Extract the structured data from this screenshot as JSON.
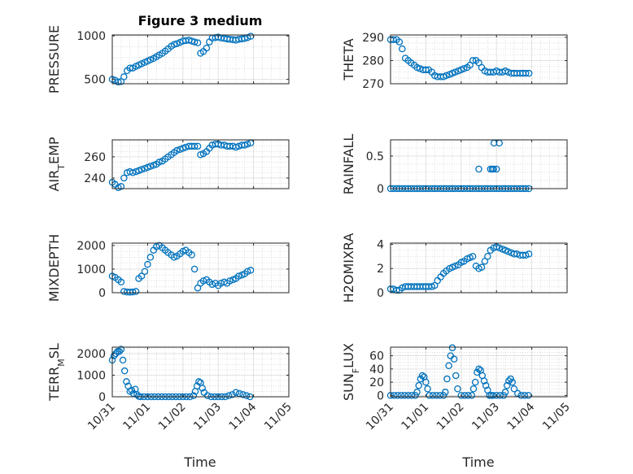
{
  "figure": {
    "title": "Figure 3 medium",
    "x_axis_label": "Time",
    "x_ticks": [
      "10/31",
      "11/01",
      "11/02",
      "11/03",
      "11/04",
      "11/05"
    ],
    "marker_color": "#0072BD",
    "marker": "open-circle"
  },
  "chart_data": [
    {
      "type": "scatter",
      "ylabel": "PRESSURE",
      "xlim": [
        0,
        5
      ],
      "ylim": [
        450,
        1010
      ],
      "yticks": [
        500,
        1000
      ],
      "grid": true,
      "x": [
        0.0,
        0.08,
        0.17,
        0.25,
        0.33,
        0.42,
        0.5,
        0.58,
        0.67,
        0.75,
        0.83,
        0.92,
        1.0,
        1.08,
        1.17,
        1.25,
        1.33,
        1.42,
        1.5,
        1.58,
        1.67,
        1.75,
        1.83,
        1.92,
        2.0,
        2.08,
        2.17,
        2.25,
        2.33,
        2.42,
        2.5,
        2.58,
        2.67,
        2.75,
        2.83,
        2.92,
        3.0,
        3.08,
        3.17,
        3.25,
        3.33,
        3.42,
        3.5,
        3.58,
        3.67,
        3.75,
        3.83,
        3.92
      ],
      "y": [
        500,
        490,
        470,
        475,
        530,
        600,
        630,
        630,
        650,
        665,
        680,
        695,
        710,
        725,
        740,
        760,
        780,
        800,
        825,
        850,
        880,
        900,
        910,
        925,
        940,
        945,
        950,
        940,
        930,
        920,
        800,
        820,
        860,
        930,
        975,
        980,
        985,
        975,
        970,
        965,
        960,
        955,
        950,
        960,
        965,
        970,
        980,
        995
      ]
    },
    {
      "type": "scatter",
      "ylabel": "THETA",
      "xlim": [
        0,
        5
      ],
      "ylim": [
        270,
        291
      ],
      "yticks": [
        270,
        280,
        290
      ],
      "grid": true,
      "x": [
        0.0,
        0.08,
        0.17,
        0.25,
        0.33,
        0.42,
        0.5,
        0.58,
        0.67,
        0.75,
        0.83,
        0.92,
        1.0,
        1.08,
        1.17,
        1.25,
        1.33,
        1.42,
        1.5,
        1.58,
        1.67,
        1.75,
        1.83,
        1.92,
        2.0,
        2.08,
        2.17,
        2.25,
        2.33,
        2.42,
        2.5,
        2.58,
        2.67,
        2.75,
        2.83,
        2.92,
        3.0,
        3.08,
        3.17,
        3.25,
        3.33,
        3.42,
        3.5,
        3.58,
        3.67,
        3.75,
        3.83,
        3.92
      ],
      "y": [
        289,
        289,
        289,
        288,
        285,
        281,
        280,
        279,
        278,
        277,
        276.5,
        276,
        276,
        276,
        275,
        273.5,
        273,
        273,
        273,
        273.5,
        274,
        274.5,
        275,
        275.5,
        276,
        276.5,
        277,
        278,
        280,
        280,
        279,
        277,
        275.5,
        275,
        275,
        275,
        275.5,
        275,
        275,
        275.5,
        275,
        274.5,
        274.5,
        274.5,
        274.5,
        274.5,
        274.5,
        274.5
      ]
    },
    {
      "type": "scatter",
      "ylabel": "AIR_TEMP",
      "xlim": [
        0,
        5
      ],
      "ylim": [
        230,
        276
      ],
      "yticks": [
        240,
        260
      ],
      "grid": true,
      "x": [
        0.0,
        0.08,
        0.17,
        0.25,
        0.33,
        0.42,
        0.5,
        0.58,
        0.67,
        0.75,
        0.83,
        0.92,
        1.0,
        1.08,
        1.17,
        1.25,
        1.33,
        1.42,
        1.5,
        1.58,
        1.67,
        1.75,
        1.83,
        1.92,
        2.0,
        2.08,
        2.17,
        2.25,
        2.33,
        2.42,
        2.5,
        2.58,
        2.67,
        2.75,
        2.83,
        2.92,
        3.0,
        3.08,
        3.17,
        3.25,
        3.33,
        3.42,
        3.5,
        3.58,
        3.67,
        3.75,
        3.83,
        3.92
      ],
      "y": [
        236,
        234,
        231,
        232,
        240,
        245,
        246,
        245,
        246,
        247,
        248,
        249,
        250,
        251,
        252,
        253,
        255,
        256,
        258,
        260,
        262,
        264,
        266,
        267,
        268,
        269,
        270,
        270,
        270,
        270,
        262,
        263,
        265,
        268,
        271,
        272,
        272,
        271,
        271,
        270,
        270,
        270,
        269,
        270,
        271,
        271,
        272,
        273
      ]
    },
    {
      "type": "scatter",
      "ylabel": "RAINFALL",
      "xlim": [
        0,
        5
      ],
      "ylim": [
        0,
        0.75
      ],
      "yticks": [
        0,
        0.5
      ],
      "grid": true,
      "x": [
        0.0,
        0.08,
        0.17,
        0.25,
        0.33,
        0.42,
        0.5,
        0.58,
        0.67,
        0.75,
        0.83,
        0.92,
        1.0,
        1.08,
        1.17,
        1.25,
        1.33,
        1.42,
        1.5,
        1.58,
        1.67,
        1.75,
        1.83,
        1.92,
        2.0,
        2.08,
        2.17,
        2.25,
        2.33,
        2.42,
        2.5,
        2.58,
        2.67,
        2.75,
        2.83,
        2.92,
        3.0,
        3.08,
        3.17,
        3.25,
        3.33,
        3.42,
        3.5,
        3.58,
        3.67,
        3.75,
        3.83,
        3.92,
        2.5,
        2.83,
        2.88,
        2.92,
        3.0,
        2.93,
        3.08
      ],
      "y": [
        0,
        0,
        0,
        0,
        0,
        0,
        0,
        0,
        0,
        0,
        0,
        0,
        0,
        0,
        0,
        0,
        0,
        0,
        0,
        0,
        0,
        0,
        0,
        0,
        0,
        0,
        0,
        0,
        0,
        0,
        0,
        0,
        0,
        0,
        0,
        0,
        0,
        0,
        0,
        0,
        0,
        0,
        0,
        0,
        0,
        0,
        0,
        0,
        0.3,
        0.3,
        0.3,
        0.3,
        0.3,
        0.7,
        0.7
      ]
    },
    {
      "type": "scatter",
      "ylabel": "MIXDEPTH",
      "xlim": [
        0,
        5
      ],
      "ylim": [
        0,
        2100
      ],
      "yticks": [
        0,
        1000,
        2000
      ],
      "grid": true,
      "x": [
        0.0,
        0.08,
        0.17,
        0.25,
        0.33,
        0.42,
        0.5,
        0.58,
        0.67,
        0.75,
        0.83,
        0.92,
        1.0,
        1.08,
        1.17,
        1.25,
        1.33,
        1.42,
        1.5,
        1.58,
        1.67,
        1.75,
        1.83,
        1.92,
        2.0,
        2.08,
        2.17,
        2.25,
        2.33,
        2.42,
        2.5,
        2.58,
        2.67,
        2.75,
        2.83,
        2.92,
        3.0,
        3.08,
        3.17,
        3.25,
        3.33,
        3.42,
        3.5,
        3.58,
        3.67,
        3.75,
        3.83,
        3.92
      ],
      "y": [
        700,
        650,
        550,
        450,
        50,
        30,
        20,
        30,
        50,
        600,
        700,
        900,
        1200,
        1500,
        1800,
        1950,
        2000,
        1900,
        1800,
        1700,
        1600,
        1500,
        1550,
        1650,
        1750,
        1800,
        1700,
        1600,
        1000,
        200,
        400,
        500,
        550,
        450,
        350,
        400,
        300,
        400,
        450,
        400,
        500,
        550,
        600,
        700,
        750,
        800,
        900,
        950
      ]
    },
    {
      "type": "scatter",
      "ylabel": "H2OMIXRA",
      "xlim": [
        0,
        5
      ],
      "ylim": [
        0,
        4.1
      ],
      "yticks": [
        0,
        2,
        4
      ],
      "grid": true,
      "x": [
        0.0,
        0.08,
        0.17,
        0.25,
        0.33,
        0.42,
        0.5,
        0.58,
        0.67,
        0.75,
        0.83,
        0.92,
        1.0,
        1.08,
        1.17,
        1.25,
        1.33,
        1.42,
        1.5,
        1.58,
        1.67,
        1.75,
        1.83,
        1.92,
        2.0,
        2.08,
        2.17,
        2.25,
        2.33,
        2.42,
        2.5,
        2.58,
        2.67,
        2.75,
        2.83,
        2.92,
        3.0,
        3.08,
        3.17,
        3.25,
        3.33,
        3.42,
        3.5,
        3.58,
        3.67,
        3.75,
        3.83,
        3.92
      ],
      "y": [
        0.3,
        0.3,
        0.2,
        0.2,
        0.4,
        0.5,
        0.5,
        0.5,
        0.5,
        0.5,
        0.5,
        0.5,
        0.5,
        0.5,
        0.5,
        0.6,
        1.0,
        1.3,
        1.6,
        1.8,
        2.0,
        2.1,
        2.2,
        2.3,
        2.5,
        2.6,
        2.8,
        2.9,
        3.0,
        2.2,
        2.0,
        2.1,
        2.6,
        3.0,
        3.5,
        3.7,
        3.8,
        3.7,
        3.6,
        3.5,
        3.4,
        3.3,
        3.2,
        3.2,
        3.1,
        3.1,
        3.1,
        3.2
      ]
    },
    {
      "type": "scatter",
      "ylabel": "TERR_MSL",
      "xlim": [
        0,
        5
      ],
      "ylim": [
        0,
        2300
      ],
      "yticks": [
        0,
        1000,
        2000
      ],
      "grid": true,
      "x": [
        0.0,
        0.05,
        0.1,
        0.15,
        0.2,
        0.25,
        0.3,
        0.35,
        0.4,
        0.45,
        0.5,
        0.55,
        0.6,
        0.65,
        0.7,
        0.75,
        0.8,
        0.9,
        1.0,
        1.1,
        1.2,
        1.3,
        1.4,
        1.5,
        1.6,
        1.7,
        1.8,
        1.9,
        2.0,
        2.1,
        2.2,
        2.3,
        2.35,
        2.4,
        2.45,
        2.5,
        2.55,
        2.6,
        2.7,
        2.8,
        2.9,
        3.0,
        3.1,
        3.2,
        3.3,
        3.4,
        3.5,
        3.6,
        3.7,
        3.8,
        3.9
      ],
      "y": [
        1700,
        1900,
        2000,
        2100,
        2100,
        2200,
        1700,
        1200,
        700,
        500,
        250,
        300,
        150,
        350,
        100,
        20,
        0,
        0,
        0,
        0,
        0,
        0,
        0,
        0,
        0,
        0,
        0,
        0,
        0,
        0,
        0,
        50,
        250,
        500,
        700,
        650,
        400,
        200,
        50,
        0,
        0,
        0,
        0,
        0,
        50,
        100,
        200,
        150,
        100,
        50,
        0
      ]
    },
    {
      "type": "scatter",
      "ylabel": "SUN_FLUX",
      "xlim": [
        0,
        5
      ],
      "ylim": [
        -2,
        73
      ],
      "yticks": [
        0,
        20,
        40,
        60
      ],
      "grid": true,
      "x": [
        0.0,
        0.1,
        0.2,
        0.3,
        0.4,
        0.5,
        0.6,
        0.7,
        0.75,
        0.8,
        0.85,
        0.9,
        0.95,
        1.0,
        1.05,
        1.1,
        1.2,
        1.3,
        1.4,
        1.5,
        1.55,
        1.6,
        1.65,
        1.7,
        1.75,
        1.8,
        1.85,
        1.9,
        2.0,
        2.1,
        2.2,
        2.3,
        2.35,
        2.4,
        2.45,
        2.5,
        2.55,
        2.6,
        2.65,
        2.7,
        2.75,
        2.8,
        2.85,
        2.9,
        3.0,
        3.1,
        3.2,
        3.25,
        3.3,
        3.35,
        3.4,
        3.45,
        3.5,
        3.6,
        3.7,
        3.8,
        3.9
      ],
      "y": [
        0,
        0,
        0,
        0,
        0,
        0,
        0,
        0,
        5,
        15,
        25,
        30,
        28,
        20,
        10,
        0,
        0,
        0,
        0,
        0,
        5,
        25,
        45,
        60,
        72,
        55,
        30,
        10,
        0,
        0,
        0,
        0,
        10,
        20,
        35,
        40,
        38,
        30,
        22,
        15,
        8,
        0,
        0,
        0,
        0,
        0,
        0,
        5,
        15,
        22,
        25,
        20,
        10,
        3,
        0,
        0,
        0
      ]
    }
  ]
}
